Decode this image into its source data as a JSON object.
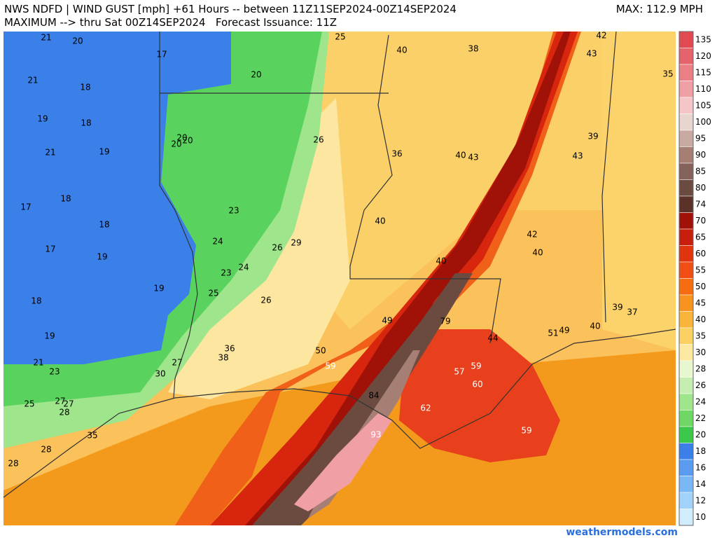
{
  "header": {
    "line1": "NWS NDFD | WIND GUST [mph] +61 Hours -- between 11Z11SEP2024-00Z14SEP2024",
    "line2": "MAXIMUM --> thru Sat 00Z14SEP2024   Forecast Issuance: 11Z",
    "max": "MAX: 112.9 MPH"
  },
  "colorbar": {
    "labels": [
      135,
      120,
      115,
      110,
      105,
      100,
      95,
      90,
      85,
      80,
      74,
      70,
      65,
      60,
      55,
      50,
      45,
      40,
      35,
      30,
      28,
      26,
      24,
      22,
      20,
      18,
      16,
      14,
      12,
      10
    ],
    "colors": [
      "#e04a50",
      "#e5636a",
      "#ea7f85",
      "#f0a0a5",
      "#f5c5c8",
      "#e8d5d0",
      "#c9aaa0",
      "#a57f73",
      "#86635a",
      "#6b4a40",
      "#5a3228",
      "#a01208",
      "#c81e0e",
      "#e0340f",
      "#f04e14",
      "#f56d10",
      "#f7931e",
      "#f9b43a",
      "#fbd261",
      "#fdeaa0",
      "#e8f7d0",
      "#c5eeb0",
      "#9fe58c",
      "#6fd864",
      "#3cc84a",
      "#3b80e8",
      "#5a9cf0",
      "#7ab8f5",
      "#a0d2fa",
      "#d0ecfd"
    ]
  },
  "map_labels": [
    21,
    20,
    17,
    25,
    40,
    38,
    42,
    43,
    35,
    21,
    18,
    20,
    19,
    18,
    39,
    26,
    36,
    40,
    43,
    43,
    20,
    20,
    20,
    21,
    19,
    18,
    17,
    23,
    18,
    40,
    42,
    17,
    19,
    24,
    26,
    29,
    40,
    40,
    23,
    24,
    19,
    25,
    18,
    26,
    49,
    79,
    39,
    37,
    40,
    51,
    49,
    44,
    19,
    36,
    50,
    38,
    27,
    21,
    59,
    59,
    57,
    23,
    30,
    60,
    84,
    27,
    27,
    25,
    28,
    62,
    35,
    59,
    93,
    28,
    28
  ],
  "footer": "weathermodels.com"
}
